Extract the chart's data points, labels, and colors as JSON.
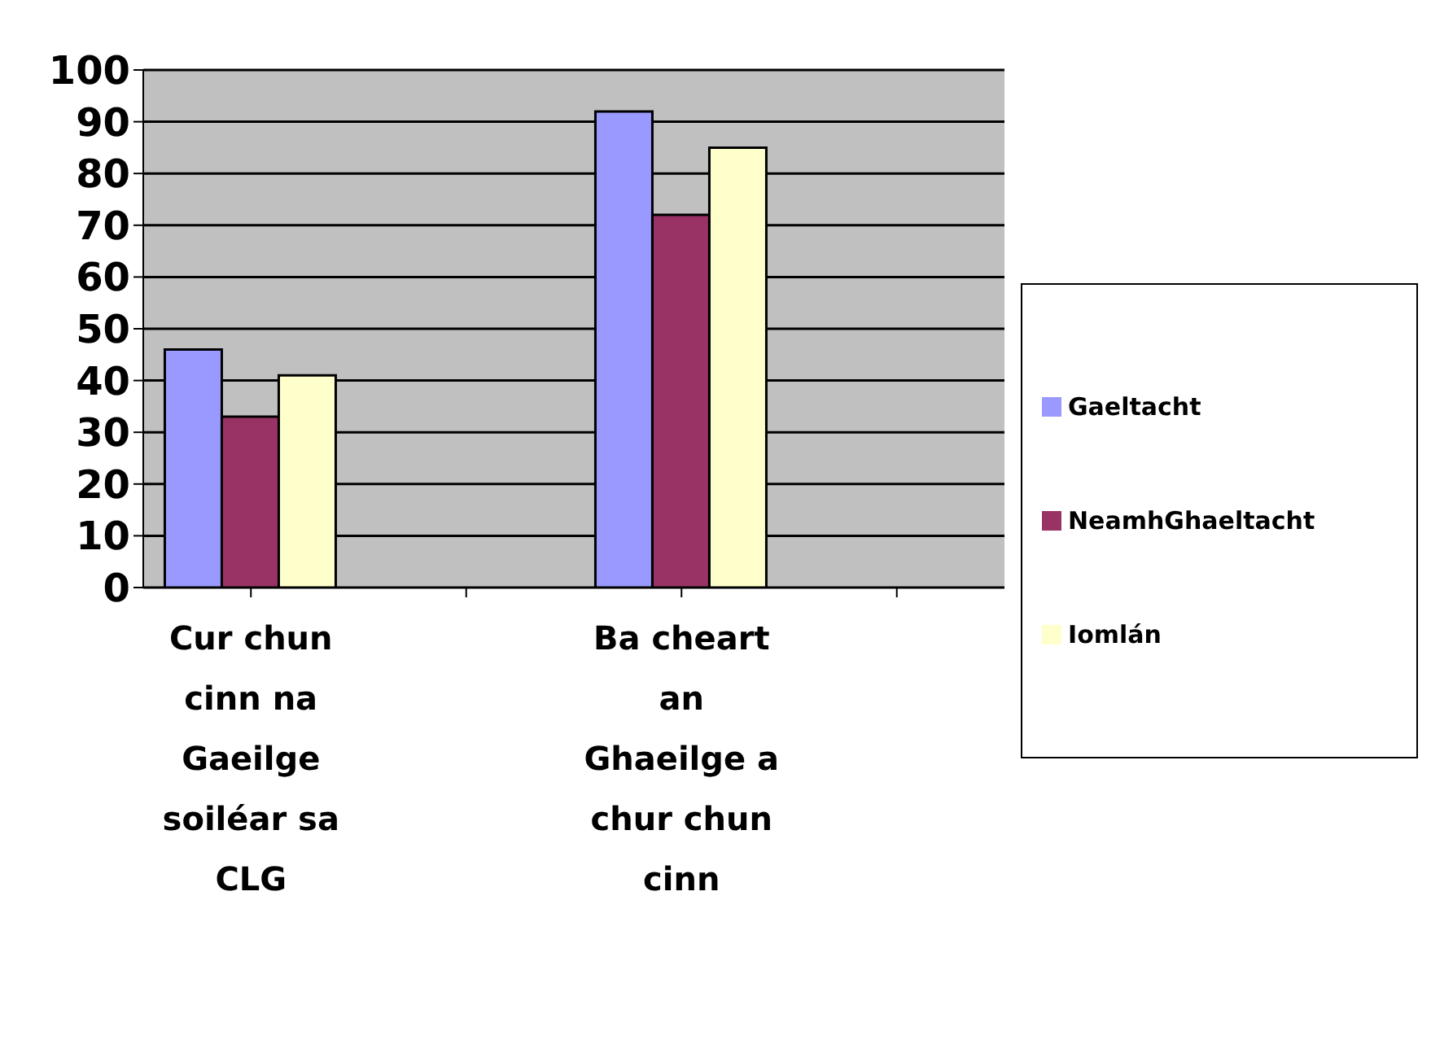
{
  "chart_data": {
    "type": "bar",
    "categories": [
      "Cur chun cinn na Gaeilge soiléar sa CLG",
      null,
      "Ba cheart an Ghaeilge a chur chun cinn",
      null
    ],
    "series": [
      {
        "name": "Gaeltacht",
        "color": "#9999ff",
        "values": [
          46,
          null,
          92,
          null
        ]
      },
      {
        "name": "NeamhGhaeltacht",
        "color": "#993366",
        "values": [
          33,
          null,
          72,
          null
        ]
      },
      {
        "name": "Iomlán",
        "color": "#ffffcc",
        "values": [
          41,
          null,
          85,
          null
        ]
      }
    ],
    "ylim": [
      0,
      100
    ],
    "yticks": [
      0,
      10,
      20,
      30,
      40,
      50,
      60,
      70,
      80,
      90,
      100
    ],
    "grid": "y",
    "legend": "right"
  }
}
